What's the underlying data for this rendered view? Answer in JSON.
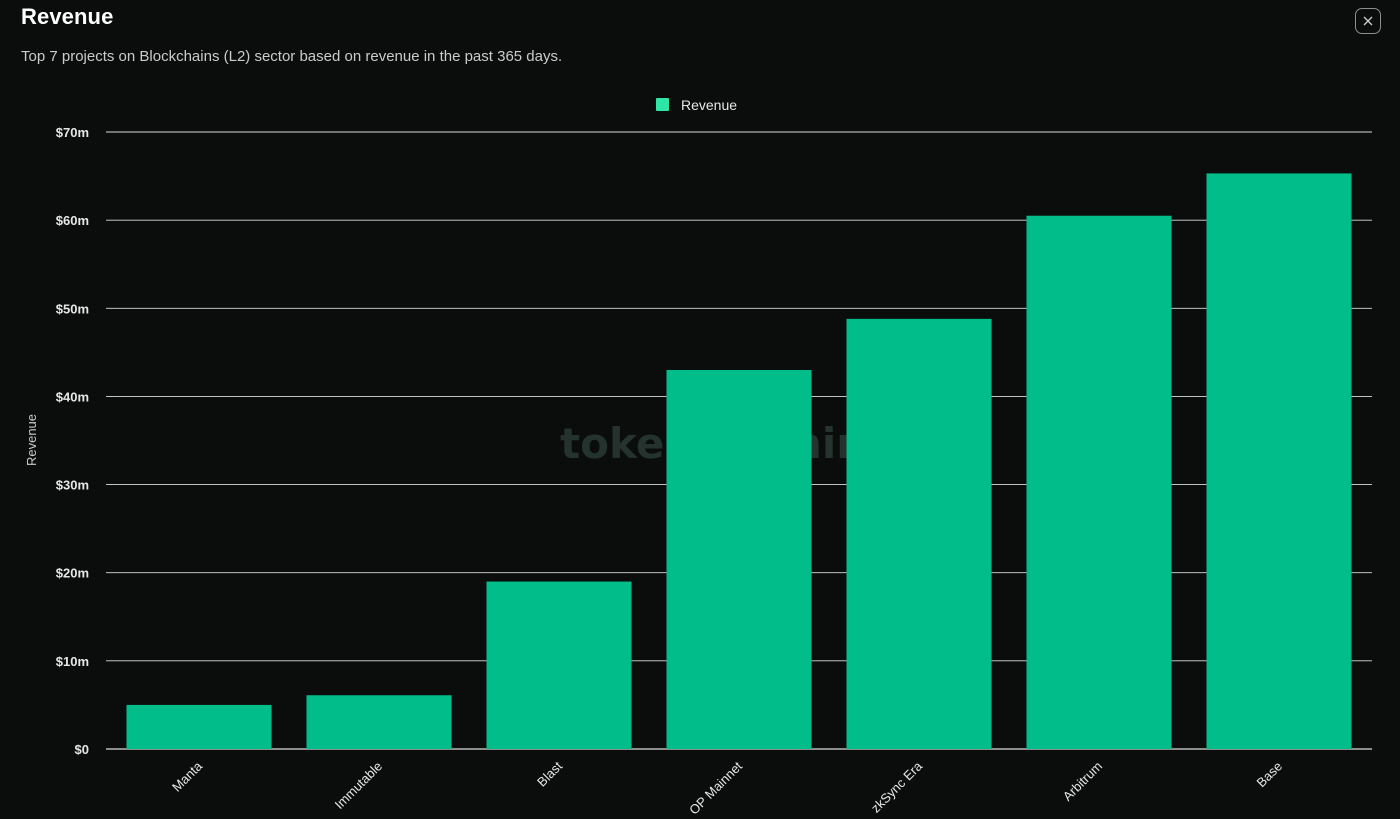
{
  "header": {
    "title": "Revenue",
    "subtitle": "Top 7 projects on Blockchains (L2) sector based on revenue in the past 365 days.",
    "close_icon": "close-icon"
  },
  "watermark": "token terminal_",
  "colors": {
    "bar": "#00bd8a",
    "legend_swatch": "#2ee6a6",
    "grid": "#d9dcdc",
    "background": "#0b0d0d"
  },
  "chart_data": {
    "type": "bar",
    "title": "Revenue",
    "categories": [
      "Manta",
      "Immutable",
      "Blast",
      "OP Mainnet",
      "zkSync Era",
      "Arbitrum",
      "Base"
    ],
    "series": [
      {
        "name": "Revenue",
        "values": [
          5.0,
          6.1,
          19.0,
          43.0,
          48.8,
          60.5,
          65.3
        ]
      }
    ],
    "ylabel": "Revenue",
    "xlabel": "",
    "ylim": [
      0,
      70
    ],
    "yticks": [
      0,
      10,
      20,
      30,
      40,
      50,
      60,
      70
    ],
    "ytick_labels": [
      "$0",
      "$10m",
      "$20m",
      "$30m",
      "$40m",
      "$50m",
      "$60m",
      "$70m"
    ],
    "unit": "$m",
    "grid": true,
    "legend": "top-center"
  }
}
